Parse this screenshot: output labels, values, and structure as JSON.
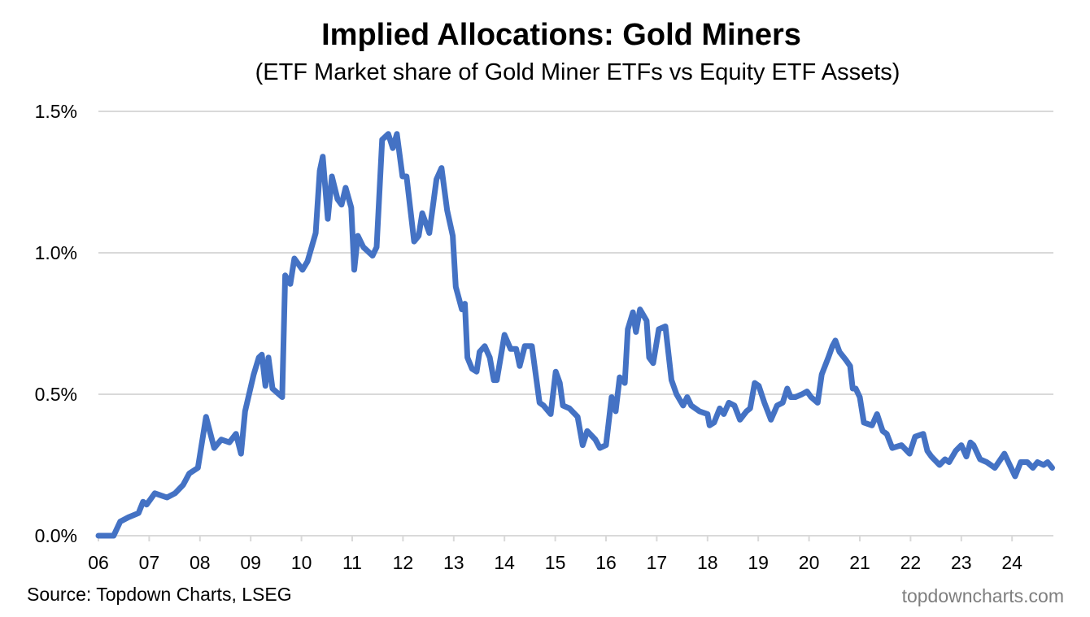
{
  "chart_data": {
    "type": "line",
    "title": "Implied Allocations: Gold Miners",
    "subtitle": "(ETF Market share of Gold Miner ETFs vs Equity ETF Assets)",
    "xlabel": "",
    "ylabel": "",
    "xlim": [
      2006,
      2024.85
    ],
    "ylim": [
      0,
      1.5
    ],
    "grid": true,
    "legend": "none",
    "x_ticks": [
      2006,
      2007,
      2008,
      2009,
      2010,
      2011,
      2012,
      2013,
      2014,
      2015,
      2016,
      2017,
      2018,
      2019,
      2020,
      2021,
      2022,
      2023,
      2024
    ],
    "x_tick_labels": [
      "06",
      "07",
      "08",
      "09",
      "10",
      "11",
      "12",
      "13",
      "14",
      "15",
      "16",
      "17",
      "18",
      "19",
      "20",
      "21",
      "22",
      "23",
      "24"
    ],
    "y_ticks": [
      0,
      0.5,
      1.0,
      1.5
    ],
    "y_tick_labels": [
      "0.0%",
      "0.5%",
      "1.0%",
      "1.5%"
    ],
    "line_color": "#4472C4",
    "series": [
      {
        "x": [
          2006.0,
          2006.3,
          2006.43,
          2006.59,
          2006.79,
          2006.88,
          2006.95,
          2007.11,
          2007.35,
          2007.51,
          2007.67,
          2007.79,
          2007.96,
          2008.12,
          2008.28,
          2008.42,
          2008.58,
          2008.71,
          2008.81,
          2008.89,
          2009.06,
          2009.16,
          2009.22,
          2009.29,
          2009.35,
          2009.43,
          2009.62,
          2009.68,
          2009.78,
          2009.86,
          2010.02,
          2010.12,
          2010.28,
          2010.36,
          2010.42,
          2010.52,
          2010.6,
          2010.71,
          2010.79,
          2010.87,
          2010.98,
          2011.04,
          2011.11,
          2011.22,
          2011.4,
          2011.48,
          2011.59,
          2011.71,
          2011.8,
          2011.88,
          2011.99,
          2012.07,
          2012.22,
          2012.31,
          2012.38,
          2012.52,
          2012.66,
          2012.76,
          2012.87,
          2012.98,
          2013.04,
          2013.16,
          2013.22,
          2013.27,
          2013.36,
          2013.45,
          2013.51,
          2013.61,
          2013.71,
          2013.79,
          2013.85,
          2014.0,
          2014.12,
          2014.23,
          2014.3,
          2014.4,
          2014.54,
          2014.69,
          2014.77,
          2014.91,
          2015.01,
          2015.09,
          2015.15,
          2015.28,
          2015.44,
          2015.54,
          2015.63,
          2015.79,
          2015.88,
          2016.0,
          2016.11,
          2016.19,
          2016.27,
          2016.37,
          2016.43,
          2016.53,
          2016.59,
          2016.67,
          2016.8,
          2016.85,
          2016.93,
          2017.04,
          2017.17,
          2017.29,
          2017.39,
          2017.52,
          2017.6,
          2017.68,
          2017.84,
          2018.0,
          2018.04,
          2018.13,
          2018.24,
          2018.32,
          2018.42,
          2018.53,
          2018.64,
          2018.77,
          2018.84,
          2018.93,
          2019.01,
          2019.12,
          2019.25,
          2019.37,
          2019.48,
          2019.57,
          2019.64,
          2019.73,
          2019.86,
          2019.96,
          2020.04,
          2020.17,
          2020.25,
          2020.38,
          2020.46,
          2020.52,
          2020.6,
          2020.73,
          2020.81,
          2020.86,
          2020.92,
          2021.0,
          2021.08,
          2021.24,
          2021.34,
          2021.45,
          2021.53,
          2021.64,
          2021.82,
          2021.98,
          2022.09,
          2022.25,
          2022.33,
          2022.41,
          2022.57,
          2022.68,
          2022.76,
          2022.89,
          2023.0,
          2023.1,
          2023.18,
          2023.24,
          2023.37,
          2023.5,
          2023.66,
          2023.85,
          2024.06,
          2024.17,
          2024.3,
          2024.41,
          2024.5,
          2024.62,
          2024.7,
          2024.79
        ],
        "y": [
          0,
          0,
          0.05,
          0.065,
          0.08,
          0.12,
          0.11,
          0.15,
          0.135,
          0.15,
          0.18,
          0.22,
          0.24,
          0.42,
          0.31,
          0.34,
          0.33,
          0.36,
          0.29,
          0.44,
          0.57,
          0.63,
          0.64,
          0.53,
          0.63,
          0.52,
          0.49,
          0.92,
          0.89,
          0.98,
          0.94,
          0.97,
          1.07,
          1.29,
          1.34,
          1.12,
          1.27,
          1.19,
          1.17,
          1.23,
          1.16,
          0.94,
          1.06,
          1.02,
          0.99,
          1.02,
          1.4,
          1.42,
          1.37,
          1.42,
          1.27,
          1.27,
          1.04,
          1.06,
          1.14,
          1.07,
          1.26,
          1.3,
          1.15,
          1.06,
          0.88,
          0.8,
          0.82,
          0.63,
          0.59,
          0.58,
          0.65,
          0.67,
          0.63,
          0.55,
          0.55,
          0.71,
          0.66,
          0.66,
          0.6,
          0.67,
          0.67,
          0.47,
          0.46,
          0.43,
          0.58,
          0.54,
          0.46,
          0.45,
          0.42,
          0.32,
          0.37,
          0.34,
          0.31,
          0.32,
          0.49,
          0.44,
          0.56,
          0.54,
          0.73,
          0.79,
          0.72,
          0.8,
          0.76,
          0.63,
          0.61,
          0.73,
          0.74,
          0.55,
          0.5,
          0.46,
          0.49,
          0.46,
          0.44,
          0.43,
          0.39,
          0.4,
          0.45,
          0.43,
          0.47,
          0.46,
          0.41,
          0.44,
          0.45,
          0.54,
          0.53,
          0.47,
          0.41,
          0.46,
          0.47,
          0.52,
          0.49,
          0.49,
          0.5,
          0.51,
          0.49,
          0.47,
          0.57,
          0.63,
          0.67,
          0.69,
          0.65,
          0.62,
          0.6,
          0.52,
          0.52,
          0.49,
          0.4,
          0.39,
          0.43,
          0.37,
          0.36,
          0.31,
          0.32,
          0.29,
          0.35,
          0.36,
          0.3,
          0.28,
          0.25,
          0.27,
          0.26,
          0.3,
          0.32,
          0.28,
          0.33,
          0.32,
          0.27,
          0.26,
          0.24,
          0.29,
          0.21,
          0.26,
          0.26,
          0.24,
          0.26,
          0.25,
          0.26,
          0.24
        ]
      }
    ]
  },
  "footer": {
    "source": "Source: Topdown Charts, LSEG",
    "watermark": "topdowncharts.com"
  }
}
